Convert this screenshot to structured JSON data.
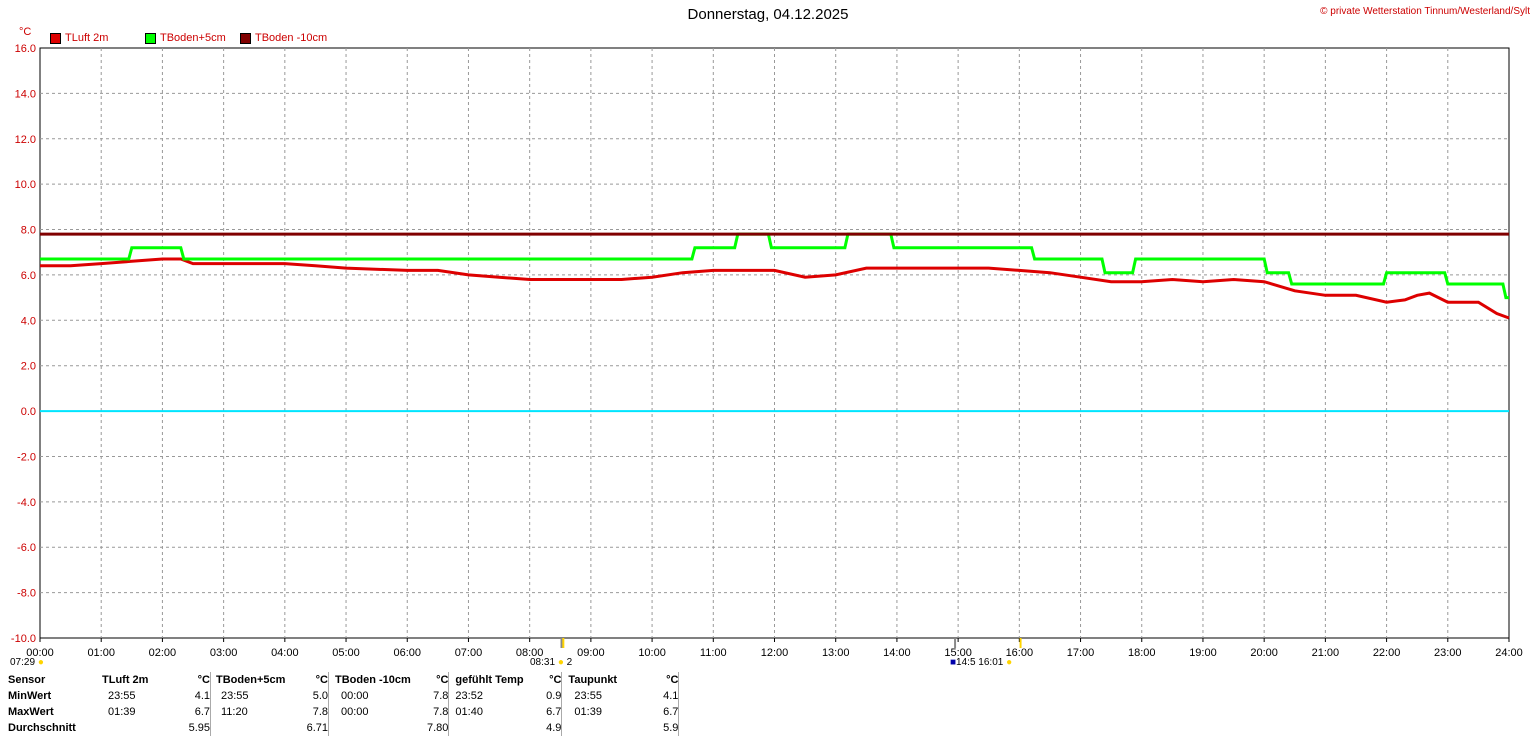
{
  "header": {
    "title": "Donnerstag, 04.12.2025",
    "copyright": "© private Wetterstation Tinnum/Westerland/Sylt",
    "unit": "°C"
  },
  "legend": [
    {
      "name": "TLuft 2m",
      "color": "#dd0000"
    },
    {
      "name": "TBoden+5cm",
      "color": "#00ff00"
    },
    {
      "name": "TBoden -10cm",
      "color": "#800000"
    }
  ],
  "chart_data": {
    "type": "line",
    "title": "Donnerstag, 04.12.2025",
    "xlabel": "",
    "ylabel": "°C",
    "xlim": [
      0,
      24
    ],
    "ylim": [
      -10,
      16
    ],
    "x_ticks": [
      "00:00",
      "01:00",
      "02:00",
      "03:00",
      "04:00",
      "05:00",
      "06:00",
      "07:00",
      "08:00",
      "09:00",
      "10:00",
      "11:00",
      "12:00",
      "13:00",
      "14:00",
      "15:00",
      "16:00",
      "17:00",
      "18:00",
      "19:00",
      "20:00",
      "21:00",
      "22:00",
      "23:00",
      "24:00"
    ],
    "y_ticks": [
      "16.0",
      "14.0",
      "12.0",
      "10.0",
      "8.0",
      "6.0",
      "4.0",
      "2.0",
      "0.0",
      "-2.0",
      "-4.0",
      "-6.0",
      "-8.0",
      "-10.0"
    ],
    "grid": true,
    "legend_position": "top-left",
    "series": [
      {
        "name": "TLuft 2m",
        "color": "#dd0000",
        "points": [
          [
            0,
            6.4
          ],
          [
            0.5,
            6.4
          ],
          [
            1,
            6.5
          ],
          [
            1.5,
            6.6
          ],
          [
            2,
            6.7
          ],
          [
            2.3,
            6.7
          ],
          [
            2.5,
            6.5
          ],
          [
            3,
            6.5
          ],
          [
            4,
            6.5
          ],
          [
            4.5,
            6.4
          ],
          [
            5,
            6.3
          ],
          [
            6,
            6.2
          ],
          [
            6.5,
            6.2
          ],
          [
            7,
            6.0
          ],
          [
            7.5,
            5.9
          ],
          [
            8,
            5.8
          ],
          [
            9,
            5.8
          ],
          [
            9.5,
            5.8
          ],
          [
            10,
            5.9
          ],
          [
            10.5,
            6.1
          ],
          [
            11,
            6.2
          ],
          [
            11.5,
            6.2
          ],
          [
            12,
            6.2
          ],
          [
            12.5,
            5.9
          ],
          [
            13,
            6.0
          ],
          [
            13.5,
            6.3
          ],
          [
            14,
            6.3
          ],
          [
            15,
            6.3
          ],
          [
            15.5,
            6.3
          ],
          [
            16,
            6.2
          ],
          [
            16.5,
            6.1
          ],
          [
            17,
            5.9
          ],
          [
            17.5,
            5.7
          ],
          [
            18,
            5.7
          ],
          [
            18.5,
            5.8
          ],
          [
            19,
            5.7
          ],
          [
            19.5,
            5.8
          ],
          [
            20,
            5.7
          ],
          [
            20.5,
            5.3
          ],
          [
            21,
            5.1
          ],
          [
            21.5,
            5.1
          ],
          [
            22,
            4.8
          ],
          [
            22.3,
            4.9
          ],
          [
            22.5,
            5.1
          ],
          [
            22.7,
            5.2
          ],
          [
            23,
            4.8
          ],
          [
            23.5,
            4.8
          ],
          [
            23.8,
            4.3
          ],
          [
            24,
            4.1
          ]
        ]
      },
      {
        "name": "TBoden+5cm",
        "color": "#00ff00",
        "points": [
          [
            0,
            6.7
          ],
          [
            1.45,
            6.7
          ],
          [
            1.5,
            7.2
          ],
          [
            2.3,
            7.2
          ],
          [
            2.35,
            6.7
          ],
          [
            10.65,
            6.7
          ],
          [
            10.7,
            7.2
          ],
          [
            11.35,
            7.2
          ],
          [
            11.4,
            7.8
          ],
          [
            11.9,
            7.8
          ],
          [
            11.95,
            7.2
          ],
          [
            13.15,
            7.2
          ],
          [
            13.2,
            7.8
          ],
          [
            13.9,
            7.8
          ],
          [
            13.95,
            7.2
          ],
          [
            16.2,
            7.2
          ],
          [
            16.25,
            6.7
          ],
          [
            17.35,
            6.7
          ],
          [
            17.4,
            6.1
          ],
          [
            17.85,
            6.1
          ],
          [
            17.9,
            6.7
          ],
          [
            20.0,
            6.7
          ],
          [
            20.05,
            6.1
          ],
          [
            20.4,
            6.1
          ],
          [
            20.45,
            5.6
          ],
          [
            21.95,
            5.6
          ],
          [
            22.0,
            6.1
          ],
          [
            22.95,
            6.1
          ],
          [
            23.0,
            5.6
          ],
          [
            23.9,
            5.6
          ],
          [
            23.95,
            5.0
          ],
          [
            24,
            5.0
          ]
        ]
      },
      {
        "name": "TBoden -10cm",
        "color": "#800000",
        "points": [
          [
            0,
            7.8
          ],
          [
            24,
            7.8
          ]
        ]
      },
      {
        "name": "",
        "color": "#00e5ff",
        "points": [
          [
            0,
            0.0
          ],
          [
            24,
            0.0
          ]
        ]
      }
    ]
  },
  "sun_markers": {
    "sunrise_left": "07:29",
    "sun_mid_left": "08:31",
    "sun_mid_right": "2",
    "hours_left": "14:5",
    "hours_right": "16:01"
  },
  "stats": {
    "headers": [
      "Sensor",
      "TLuft 2m",
      "°C",
      "TBoden+5cm",
      "°C",
      "TBoden -10cm",
      "°C",
      "gefühlt Temp",
      "°C",
      "Taupunkt",
      "°C"
    ],
    "rows": [
      {
        "label": "MinWert",
        "cells": [
          "23:55",
          "4.1",
          "23:55",
          "5.0",
          "00:00",
          "7.8",
          "23:52",
          "0.9",
          "23:55",
          "4.1"
        ]
      },
      {
        "label": "MaxWert",
        "cells": [
          "01:39",
          "6.7",
          "11:20",
          "7.8",
          "00:00",
          "7.8",
          "01:40",
          "6.7",
          "01:39",
          "6.7"
        ]
      },
      {
        "label": "Durchschnitt",
        "cells": [
          "",
          "5.95",
          "",
          "6.71",
          "",
          "7.80",
          "",
          "4.9",
          "",
          "5.9"
        ]
      }
    ]
  }
}
